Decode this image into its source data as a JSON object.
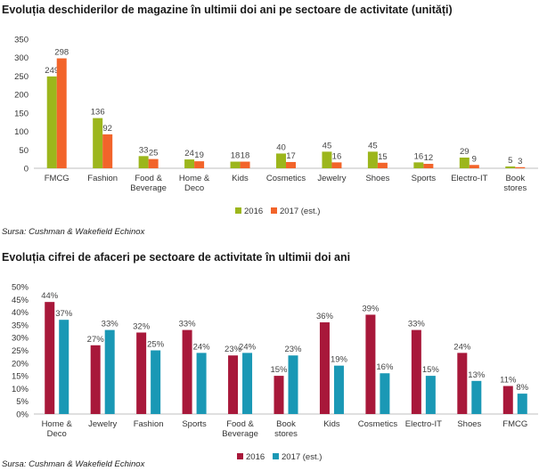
{
  "chart_data": [
    {
      "type": "bar",
      "title": "Evoluția deschiderilor de magazine în ultimii doi ani pe sectoare de activitate (unități)",
      "source": "Sursa: Cushman & Wakefield Echinox",
      "categories": [
        "FMCG",
        "Fashion",
        "Food &\nBeverage",
        "Home &\nDeco",
        "Kids",
        "Cosmetics",
        "Jewelry",
        "Shoes",
        "Sports",
        "Electro-IT",
        "Book\nstores"
      ],
      "series": [
        {
          "name": "2016",
          "color": "#9cb61c",
          "values": [
            249,
            136,
            33,
            24,
            18,
            40,
            45,
            45,
            16,
            29,
            5
          ],
          "labels": [
            "249",
            "136",
            "33",
            "24",
            "18",
            "40",
            "45",
            "45",
            "16",
            "29",
            "5"
          ]
        },
        {
          "name": "2017 (est.)",
          "color": "#f2642a",
          "values": [
            298,
            92,
            25,
            19,
            18,
            17,
            16,
            15,
            12,
            9,
            3
          ],
          "labels": [
            "298",
            "92",
            "25",
            "19",
            "18",
            "17",
            "16",
            "15",
            "12",
            "9",
            "3"
          ]
        }
      ],
      "yticks": [
        "0",
        "50",
        "100",
        "150",
        "200",
        "250",
        "300",
        "350"
      ],
      "ylim": [
        0,
        350
      ],
      "grid": false,
      "legend": "bottom"
    },
    {
      "type": "bar",
      "title": "Evoluția cifrei de afaceri pe sectoare de activitate în ultimii doi ani",
      "source": "Sursa: Cushman & Wakefield Echinox",
      "categories": [
        "Home &\nDeco",
        "Jewelry",
        "Fashion",
        "Sports",
        "Food &\nBeverage",
        "Book\nstores",
        "Kids",
        "Cosmetics",
        "Electro-IT",
        "Shoes",
        "FMCG"
      ],
      "series": [
        {
          "name": "2016",
          "color": "#a8183a",
          "values": [
            44,
            27,
            32,
            33,
            23,
            15,
            36,
            39,
            33,
            24,
            11
          ],
          "labels": [
            "44%",
            "27%",
            "32%",
            "33%",
            "23%",
            "15%",
            "36%",
            "39%",
            "33%",
            "24%",
            "11%"
          ]
        },
        {
          "name": "2017 (est.)",
          "color": "#1a98b5",
          "values": [
            37,
            33,
            25,
            24,
            24,
            23,
            19,
            16,
            15,
            13,
            8
          ],
          "labels": [
            "37%",
            "33%",
            "25%",
            "24%",
            "24%",
            "23%",
            "19%",
            "16%",
            "15%",
            "13%",
            "8%"
          ]
        }
      ],
      "yticks": [
        "0%",
        "5%",
        "10%",
        "15%",
        "20%",
        "25%",
        "30%",
        "35%",
        "40%",
        "45%",
        "50%"
      ],
      "ylim": [
        0,
        50
      ],
      "grid": false,
      "legend": "bottom"
    }
  ]
}
